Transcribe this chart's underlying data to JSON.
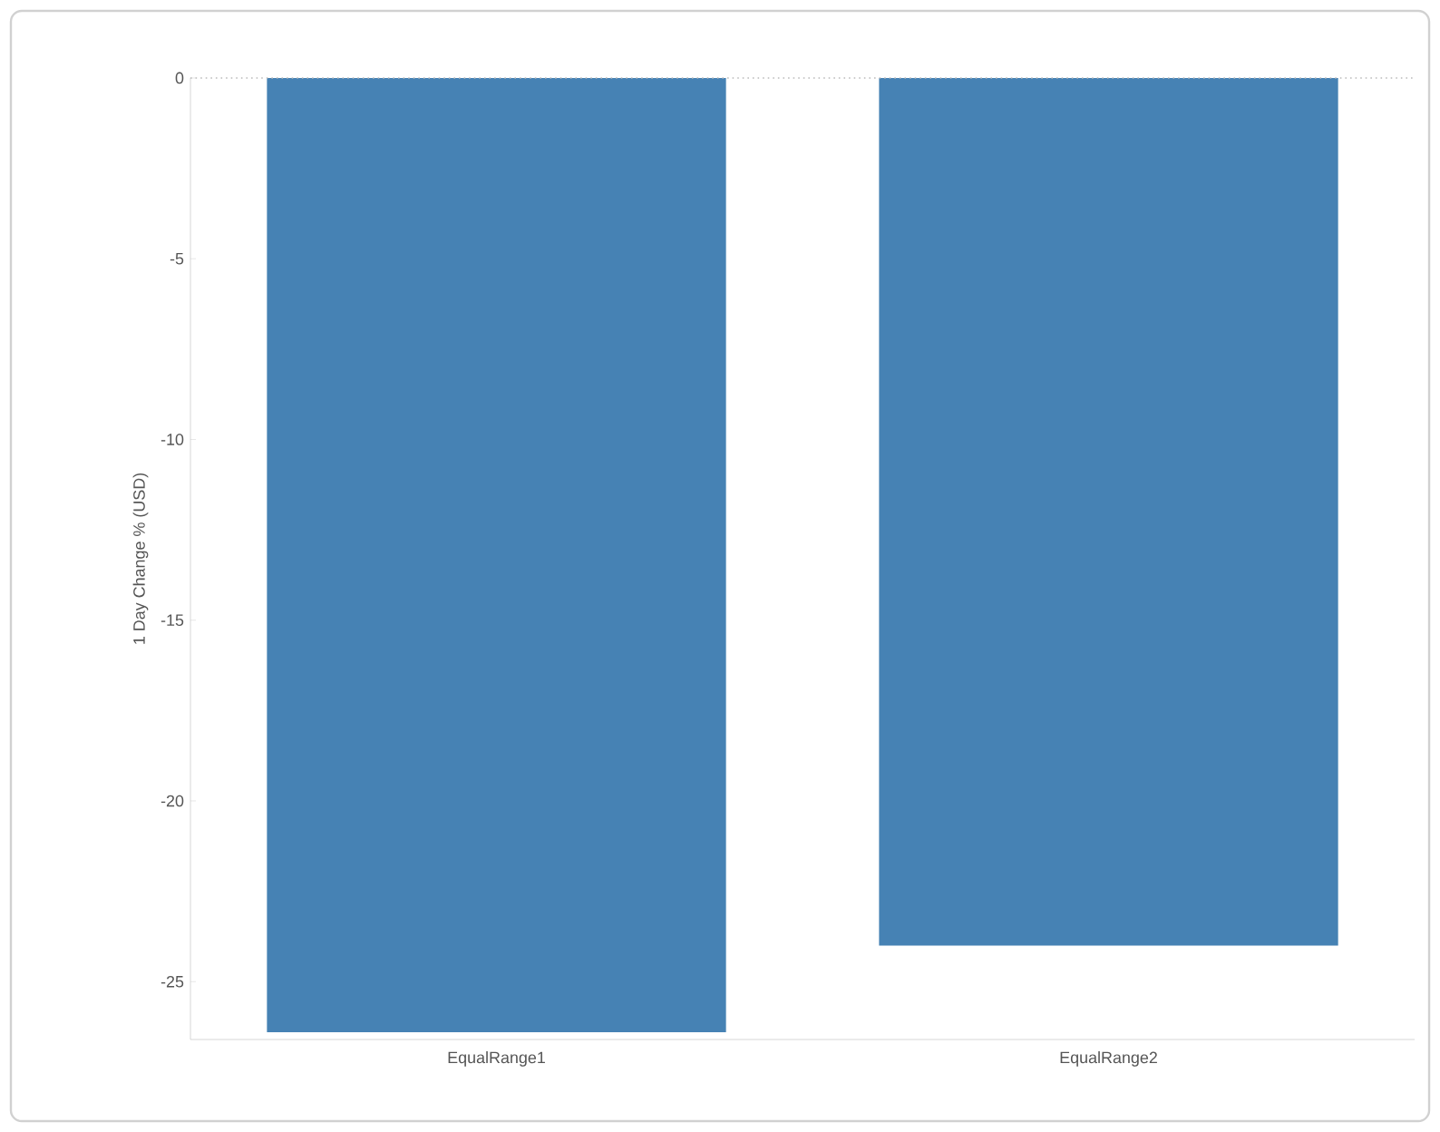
{
  "chart_data": {
    "type": "bar",
    "ylabel": "1 Day Change % (USD)",
    "categories": [
      "EqualRange1",
      "EqualRange2"
    ],
    "values": [
      -26.4,
      -24.0
    ],
    "color": "#4682b4",
    "ylim": [
      -26.6,
      0
    ],
    "yticks": [
      -25,
      -20,
      -15,
      -10,
      -5,
      0
    ],
    "ref_lines": [
      {
        "axis": "y",
        "value": 0,
        "line_style": "dotted",
        "color": "#bbbbbb"
      }
    ],
    "grid": false
  }
}
